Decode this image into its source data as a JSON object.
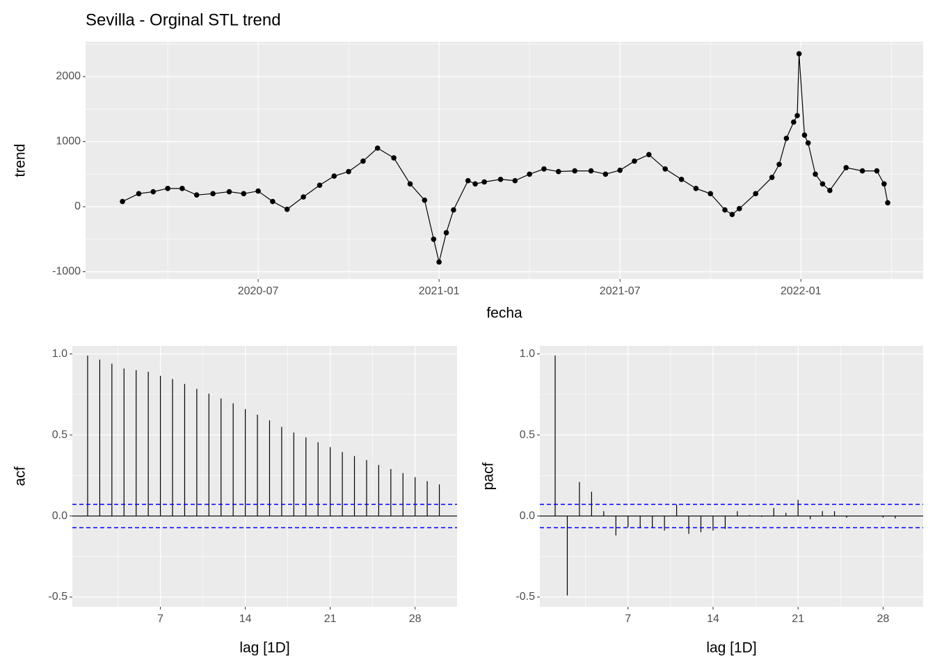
{
  "chart_data": [
    {
      "type": "line",
      "title": "Sevilla - Orginal STL trend",
      "xlabel": "fecha",
      "ylabel": "trend",
      "x": [
        2020.125,
        2020.17,
        2020.21,
        2020.25,
        2020.29,
        2020.33,
        2020.375,
        2020.42,
        2020.46,
        2020.5,
        2020.54,
        2020.58,
        2020.625,
        2020.67,
        2020.71,
        2020.75,
        2020.79,
        2020.83,
        2020.875,
        2020.92,
        2020.96,
        2020.985,
        2021.0,
        2021.02,
        2021.04,
        2021.08,
        2021.1,
        2021.125,
        2021.17,
        2021.21,
        2021.25,
        2021.29,
        2021.33,
        2021.375,
        2021.42,
        2021.46,
        2021.5,
        2021.54,
        2021.58,
        2021.625,
        2021.67,
        2021.71,
        2021.75,
        2021.79,
        2021.81,
        2021.83,
        2021.875,
        2021.92,
        2021.94,
        2021.96,
        2021.98,
        2021.99,
        2021.995,
        2022.01,
        2022.02,
        2022.04,
        2022.06,
        2022.08,
        2022.125,
        2022.17,
        2022.21,
        2022.23,
        2022.24
      ],
      "values": [
        80,
        200,
        230,
        280,
        280,
        180,
        200,
        230,
        200,
        240,
        80,
        -40,
        150,
        330,
        470,
        540,
        700,
        900,
        750,
        350,
        100,
        -500,
        -850,
        -400,
        -50,
        400,
        350,
        380,
        420,
        400,
        500,
        580,
        540,
        550,
        550,
        500,
        560,
        700,
        800,
        580,
        420,
        280,
        200,
        -50,
        -120,
        -30,
        200,
        450,
        650,
        1050,
        1300,
        1400,
        2350,
        1100,
        980,
        500,
        350,
        250,
        600,
        550,
        550,
        350,
        60
      ],
      "color": "#000000",
      "xlim": [
        2020.023,
        2022.338
      ],
      "xticks": [
        {
          "value": 2020.5,
          "label": "2020-07"
        },
        {
          "value": 2021.0,
          "label": "2021-01"
        },
        {
          "value": 2021.5,
          "label": "2021-07"
        },
        {
          "value": 2022.0,
          "label": "2022-01"
        }
      ],
      "ylim": [
        -1112,
        2535
      ],
      "yticks": [
        -1000,
        0,
        1000,
        2000
      ],
      "grid": true
    },
    {
      "type": "stem",
      "xlabel": "lag [1D]",
      "ylabel": "acf",
      "x": [
        1,
        2,
        3,
        4,
        5,
        6,
        7,
        8,
        9,
        10,
        11,
        12,
        13,
        14,
        15,
        16,
        17,
        18,
        19,
        20,
        21,
        22,
        23,
        24,
        25,
        26,
        27,
        28,
        29,
        30
      ],
      "values": [
        0.99,
        0.965,
        0.94,
        0.91,
        0.9,
        0.89,
        0.865,
        0.845,
        0.815,
        0.785,
        0.755,
        0.725,
        0.695,
        0.66,
        0.625,
        0.59,
        0.55,
        0.515,
        0.485,
        0.455,
        0.425,
        0.395,
        0.37,
        0.345,
        0.315,
        0.29,
        0.265,
        0.24,
        0.215,
        0.195
      ],
      "color": "#000000",
      "hlines": {
        "values": [
          0.072,
          -0.072
        ],
        "color": "#0000ff"
      },
      "xlim": [
        -0.26,
        31.46
      ],
      "xticks": [
        7,
        14,
        21,
        28
      ],
      "ylim": [
        -0.56,
        1.05
      ],
      "yticks": [
        {
          "value": -0.5,
          "label": "-0.5"
        },
        {
          "value": 0,
          "label": "0.0"
        },
        {
          "value": 0.5,
          "label": "0.5"
        },
        {
          "value": 1,
          "label": "1.0"
        }
      ],
      "grid": true
    },
    {
      "type": "stem",
      "xlabel": "lag [1D]",
      "ylabel": "pacf",
      "x": [
        1,
        2,
        3,
        4,
        5,
        6,
        7,
        8,
        9,
        10,
        11,
        12,
        13,
        14,
        15,
        16,
        17,
        18,
        19,
        20,
        21,
        22,
        23,
        24,
        25,
        26,
        27,
        28,
        29,
        30
      ],
      "values": [
        0.99,
        -0.49,
        0.21,
        0.15,
        0.03,
        -0.12,
        -0.07,
        -0.07,
        -0.07,
        -0.09,
        0.07,
        -0.11,
        -0.1,
        -0.09,
        -0.08,
        0.03,
        0.005,
        -0.005,
        0.05,
        0.02,
        0.1,
        -0.02,
        0.03,
        0.03,
        -0.01,
        0.002,
        0.002,
        -0.01,
        -0.015,
        0.002
      ],
      "color": "#000000",
      "hlines": {
        "values": [
          0.072,
          -0.072
        ],
        "color": "#0000ff"
      },
      "xlim": [
        -0.26,
        31.3
      ],
      "xticks": [
        7,
        14,
        21,
        28
      ],
      "ylim": [
        -0.56,
        1.05
      ],
      "yticks": [
        {
          "value": -0.5,
          "label": "-0.5"
        },
        {
          "value": 0,
          "label": "0.0"
        },
        {
          "value": 0.5,
          "label": "0.5"
        },
        {
          "value": 1,
          "label": "1.0"
        }
      ],
      "grid": true
    }
  ]
}
